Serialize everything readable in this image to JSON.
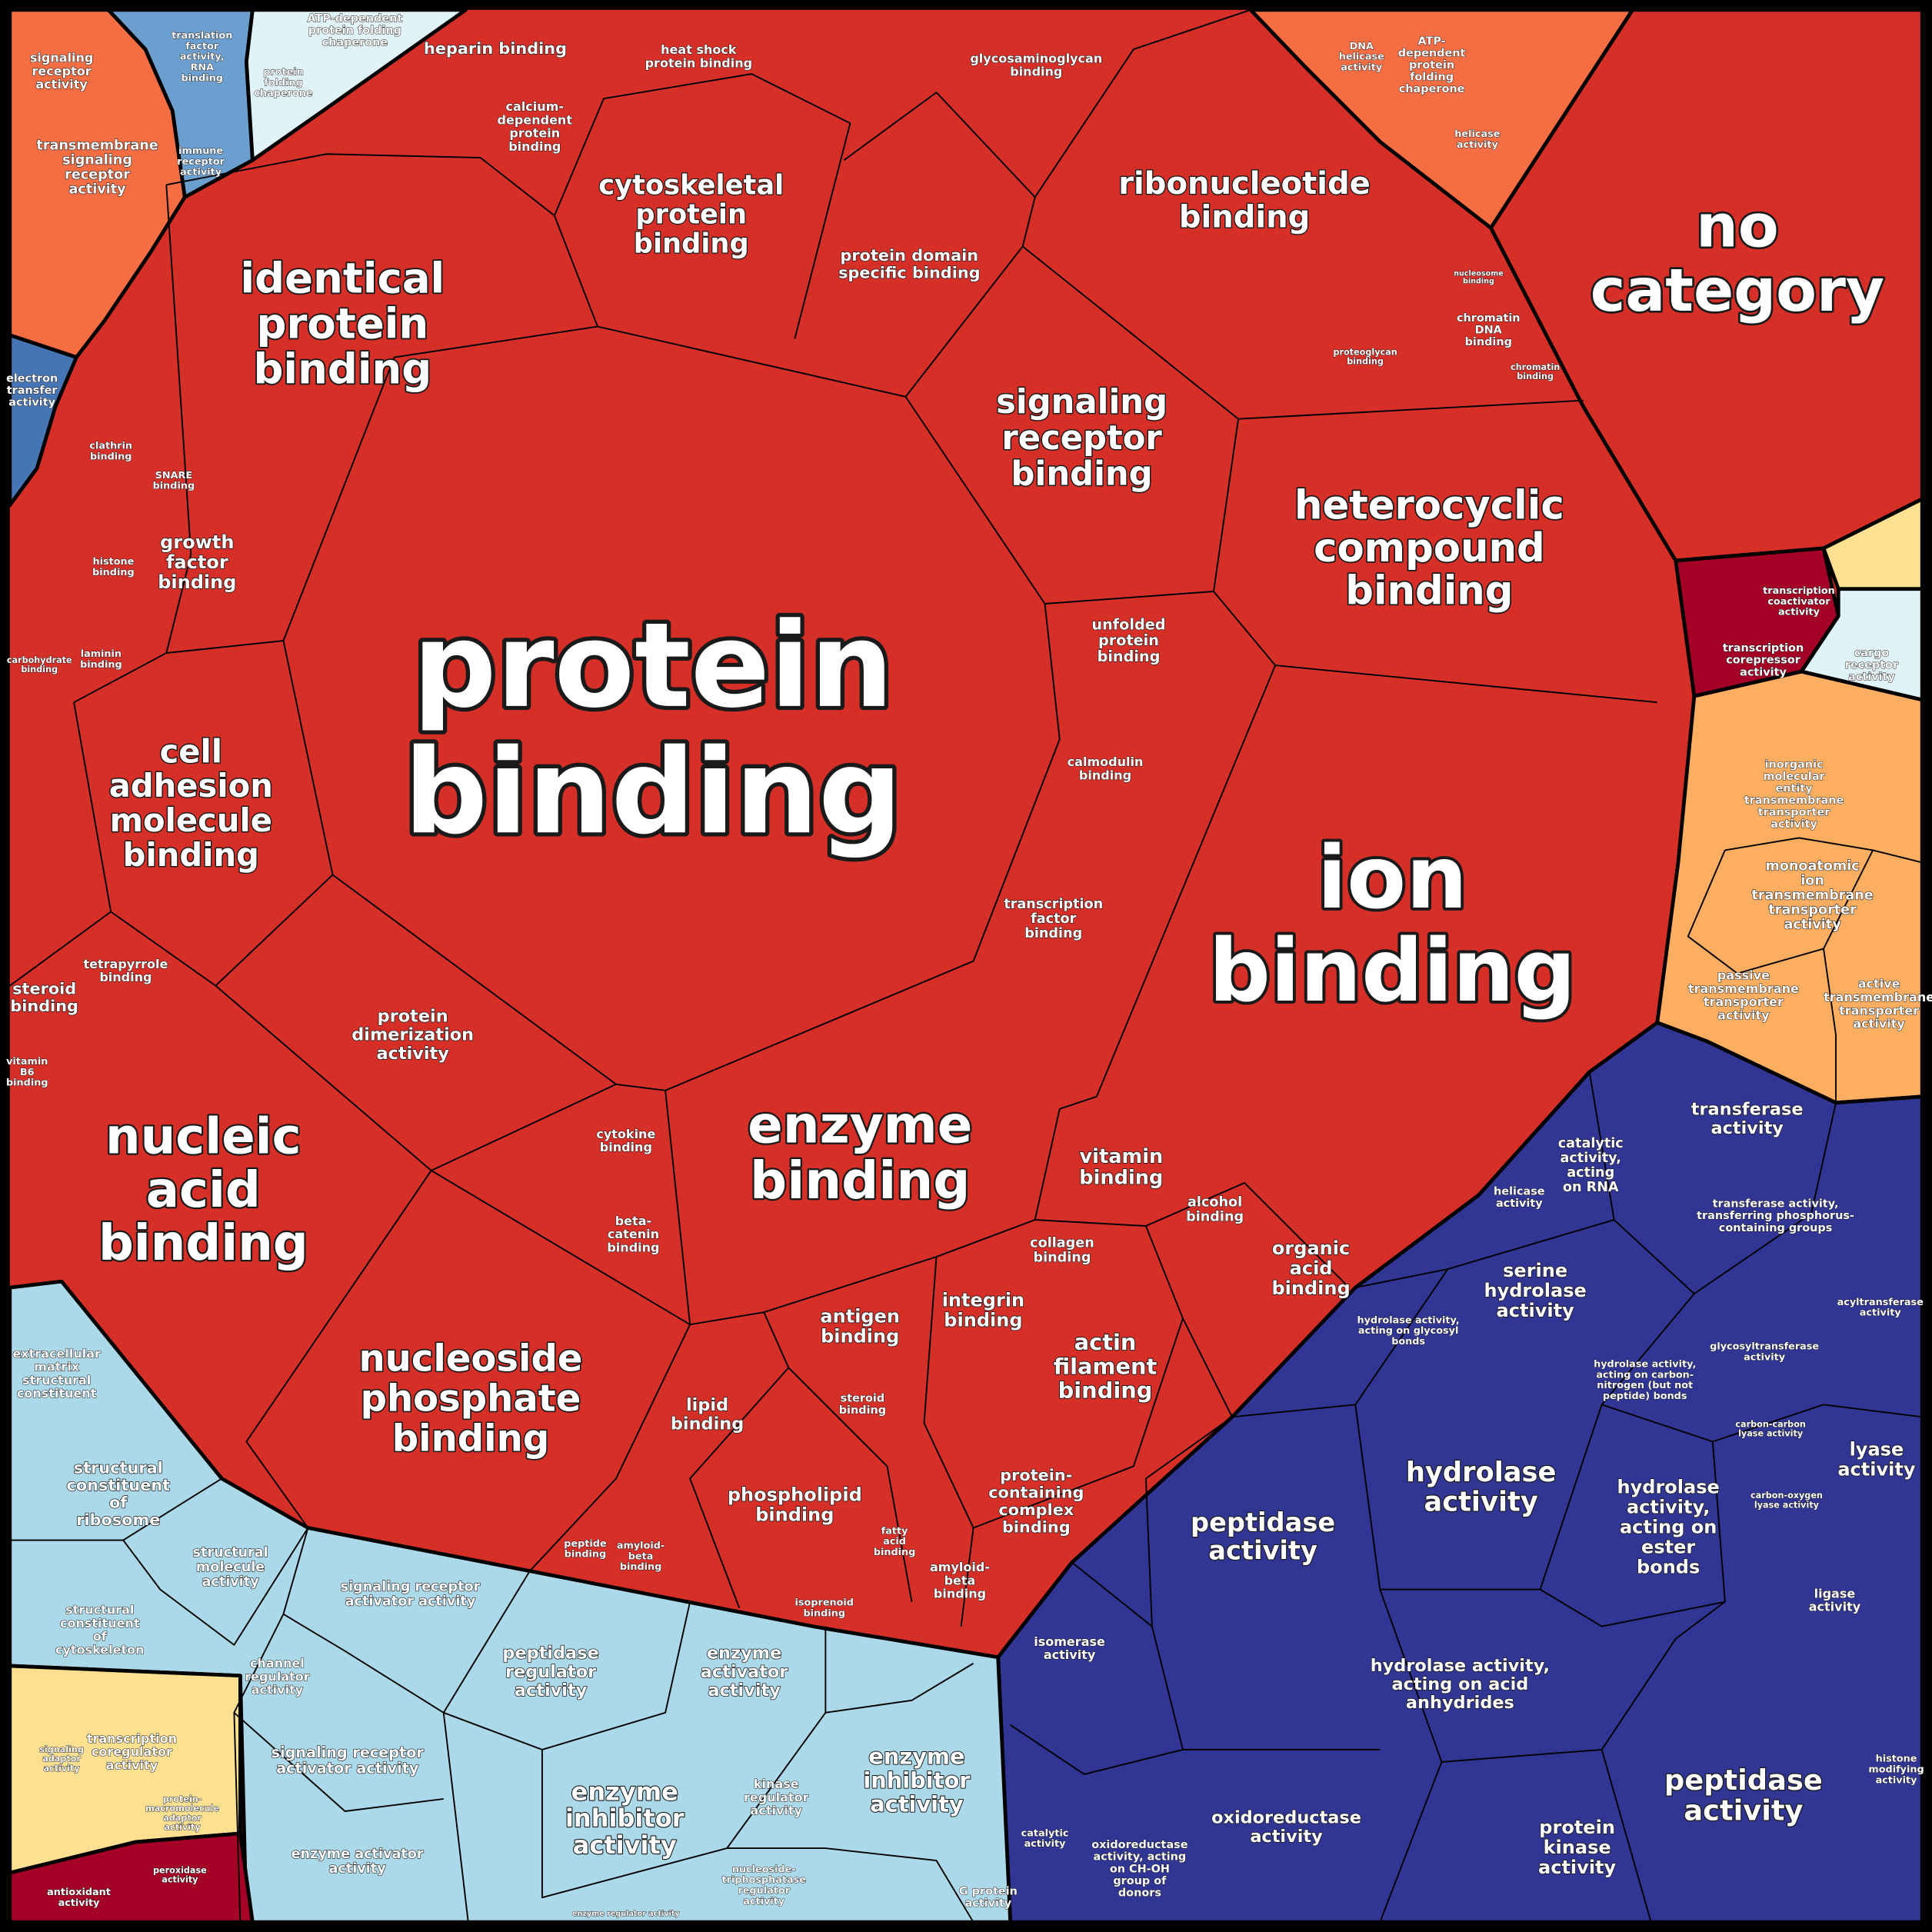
{
  "cells": [
    {
      "label": [
        "protein",
        "binding"
      ]
    },
    {
      "label": [
        "ion",
        "binding"
      ]
    },
    {
      "label": [
        "no",
        "category"
      ]
    },
    {
      "label": [
        "heterocyclic",
        "compound",
        "binding"
      ]
    },
    {
      "label": [
        "identical",
        "protein",
        "binding"
      ]
    },
    {
      "label": [
        "nucleic",
        "acid",
        "binding"
      ]
    },
    {
      "label": [
        "enzyme",
        "binding"
      ]
    },
    {
      "label": [
        "nucleoside",
        "phosphate",
        "binding"
      ]
    },
    {
      "label": [
        "cell",
        "adhesion",
        "molecule",
        "binding"
      ]
    },
    {
      "label": [
        "signaling",
        "receptor",
        "binding"
      ]
    },
    {
      "label": [
        "ribonucleotide",
        "binding"
      ]
    },
    {
      "label": [
        "cytoskeletal",
        "protein",
        "binding"
      ]
    },
    {
      "label": [
        "protein",
        "dimerization",
        "activity"
      ]
    },
    {
      "label": [
        "actin",
        "filament",
        "binding"
      ]
    },
    {
      "label": [
        "phospholipid",
        "binding"
      ]
    },
    {
      "label": [
        "protein domain",
        "specific binding"
      ]
    },
    {
      "label": [
        "growth",
        "factor",
        "binding"
      ]
    },
    {
      "label": [
        "heparin binding"
      ]
    },
    {
      "label": [
        "unfolded",
        "protein",
        "binding"
      ]
    },
    {
      "label": [
        "vitamin",
        "binding"
      ]
    },
    {
      "label": [
        "organic",
        "acid",
        "binding"
      ]
    },
    {
      "label": [
        "transcription",
        "factor",
        "binding"
      ]
    },
    {
      "label": [
        "integrin",
        "binding"
      ]
    },
    {
      "label": [
        "antigen",
        "binding"
      ]
    },
    {
      "label": [
        "lipid",
        "binding"
      ]
    },
    {
      "label": [
        "protein-",
        "containing",
        "complex",
        "binding"
      ]
    },
    {
      "label": [
        "steroid",
        "binding"
      ]
    },
    {
      "label": [
        "calcium-",
        "dependent",
        "protein",
        "binding"
      ]
    },
    {
      "label": [
        "alcohol",
        "binding"
      ]
    },
    {
      "label": [
        "collagen",
        "binding"
      ]
    },
    {
      "label": [
        "calmodulin",
        "binding"
      ]
    },
    {
      "label": [
        "amyloid-",
        "beta",
        "binding"
      ]
    },
    {
      "label": [
        "tetrapyrrole",
        "binding"
      ]
    },
    {
      "label": [
        "cytokine",
        "binding"
      ]
    },
    {
      "label": [
        "beta-",
        "catenin",
        "binding"
      ]
    },
    {
      "label": [
        "heat shock",
        "protein binding"
      ]
    },
    {
      "label": [
        "glycosaminoglycan",
        "binding"
      ]
    },
    {
      "label": [
        "chromatin",
        "DNA",
        "binding"
      ]
    },
    {
      "label": [
        "clathrin",
        "binding"
      ]
    },
    {
      "label": [
        "SNARE",
        "binding"
      ]
    },
    {
      "label": [
        "histone",
        "binding"
      ]
    },
    {
      "label": [
        "laminin",
        "binding"
      ]
    },
    {
      "label": [
        "fatty",
        "acid",
        "binding"
      ]
    },
    {
      "label": [
        "isoprenoid",
        "binding"
      ]
    },
    {
      "label": [
        "steroid",
        "binding"
      ]
    },
    {
      "label": [
        "peptide",
        "binding"
      ]
    },
    {
      "label": [
        "amyloid-",
        "beta",
        "binding"
      ]
    },
    {
      "label": [
        "proteoglycan",
        "binding"
      ]
    },
    {
      "label": [
        "chromatin",
        "binding"
      ]
    },
    {
      "label": [
        "nucleosome",
        "binding"
      ]
    },
    {
      "label": [
        "carbohydrate",
        "binding"
      ]
    },
    {
      "label": [
        "vitamin",
        "B6",
        "binding"
      ]
    },
    {
      "label": [
        "signaling",
        "receptor",
        "activity"
      ]
    },
    {
      "label": [
        "transmembrane",
        "signaling",
        "receptor",
        "activity"
      ]
    },
    {
      "label": [
        "immune",
        "receptor",
        "activity"
      ]
    },
    {
      "label": [
        "translation",
        "factor",
        "activity,",
        "RNA",
        "binding"
      ]
    },
    {
      "label": [
        "electron",
        "transfer",
        "activity"
      ]
    },
    {
      "label": [
        "ATP-dependent",
        "protein folding",
        "chaperone"
      ]
    },
    {
      "label": [
        "protein",
        "folding",
        "chaperone"
      ]
    },
    {
      "label": [
        "ATP-",
        "dependent",
        "protein",
        "folding",
        "chaperone"
      ]
    },
    {
      "label": [
        "DNA",
        "helicase",
        "activity"
      ]
    },
    {
      "label": [
        "helicase",
        "activity"
      ]
    },
    {
      "label": [
        "transcription",
        "coactivator",
        "activity"
      ]
    },
    {
      "label": [
        "transcription",
        "corepressor",
        "activity"
      ]
    },
    {
      "label": [
        "cargo",
        "receptor",
        "activity"
      ]
    },
    {
      "label": [
        "inorganic",
        "molecular",
        "entity",
        "transmembrane",
        "transporter",
        "activity"
      ]
    },
    {
      "label": [
        "monoatomic",
        "ion",
        "transmembrane",
        "transporter",
        "activity"
      ]
    },
    {
      "label": [
        "passive",
        "transmembrane",
        "transporter",
        "activity"
      ]
    },
    {
      "label": [
        "active",
        "transmembrane",
        "transporter",
        "activity"
      ]
    },
    {
      "label": [
        "transferase",
        "activity"
      ]
    },
    {
      "label": [
        "catalytic",
        "activity,",
        "acting",
        "on RNA"
      ]
    },
    {
      "label": [
        "helicase",
        "activity"
      ]
    },
    {
      "label": [
        "transferase activity,",
        "transferring phosphorus-",
        "containing groups"
      ]
    },
    {
      "label": [
        "serine",
        "hydrolase",
        "activity"
      ]
    },
    {
      "label": [
        "hydrolase activity,",
        "acting on glycosyl",
        "bonds"
      ]
    },
    {
      "label": [
        "hydrolase activity,",
        "acting on carbon-",
        "nitrogen (but not",
        "peptide) bonds"
      ]
    },
    {
      "label": [
        "hydrolase",
        "activity"
      ]
    },
    {
      "label": [
        "hydrolase",
        "activity,",
        "acting on",
        "ester",
        "bonds"
      ]
    },
    {
      "label": [
        "peptidase",
        "activity"
      ]
    },
    {
      "label": [
        "lyase",
        "activity"
      ]
    },
    {
      "label": [
        "glycosyltransferase",
        "activity"
      ]
    },
    {
      "label": [
        "acyltransferase",
        "activity"
      ]
    },
    {
      "label": [
        "hydrolase activity,",
        "acting on acid",
        "anhydrides"
      ]
    },
    {
      "label": [
        "ligase",
        "activity"
      ]
    },
    {
      "label": [
        "isomerase",
        "activity"
      ]
    },
    {
      "label": [
        "oxidoreductase",
        "activity"
      ]
    },
    {
      "label": [
        "peptidase",
        "activity"
      ]
    },
    {
      "label": [
        "protein",
        "kinase",
        "activity"
      ]
    },
    {
      "label": [
        "oxidoreductase",
        "activity, acting",
        "on CH-OH",
        "group of",
        "donors"
      ]
    },
    {
      "label": [
        "catalytic",
        "activity"
      ]
    },
    {
      "label": [
        "carbon-carbon",
        "lyase activity"
      ]
    },
    {
      "label": [
        "carbon-oxygen",
        "lyase activity"
      ]
    },
    {
      "label": [
        "histone",
        "modifying",
        "activity"
      ]
    },
    {
      "label": [
        "extracellular",
        "matrix",
        "structural",
        "constituent"
      ]
    },
    {
      "label": [
        "structural",
        "constituent",
        "of",
        "ribosome"
      ]
    },
    {
      "label": [
        "structural",
        "molecule",
        "activity"
      ]
    },
    {
      "label": [
        "structural",
        "constituent",
        "of",
        "cytoskeleton"
      ]
    },
    {
      "label": [
        "signaling receptor",
        "activator activity"
      ]
    },
    {
      "label": [
        "peptidase",
        "regulator",
        "activity"
      ]
    },
    {
      "label": [
        "enzyme",
        "activator",
        "activity"
      ]
    },
    {
      "label": [
        "channel",
        "regulator",
        "activity"
      ]
    },
    {
      "label": [
        "signaling receptor",
        "activator activity"
      ]
    },
    {
      "label": [
        "enzyme",
        "inhibitor",
        "activity"
      ]
    },
    {
      "label": [
        "kinase",
        "regulator",
        "activity"
      ]
    },
    {
      "label": [
        "enzyme",
        "inhibitor",
        "activity"
      ]
    },
    {
      "label": [
        "enzyme activator",
        "activity"
      ]
    },
    {
      "label": [
        "nucleoside-",
        "triphosphatase",
        "regulator",
        "activity"
      ]
    },
    {
      "label": [
        "G protein",
        "activity"
      ]
    },
    {
      "label": [
        "enzyme regulator activity"
      ]
    },
    {
      "label": [
        "transcription",
        "coregulator",
        "activity"
      ]
    },
    {
      "label": [
        "signaling",
        "adaptor",
        "activity"
      ]
    },
    {
      "label": [
        "protein-",
        "macromolecule",
        "adaptor",
        "activity"
      ]
    },
    {
      "label": [
        "antioxidant",
        "activity"
      ]
    },
    {
      "label": [
        "peroxidase",
        "activity"
      ]
    }
  ]
}
